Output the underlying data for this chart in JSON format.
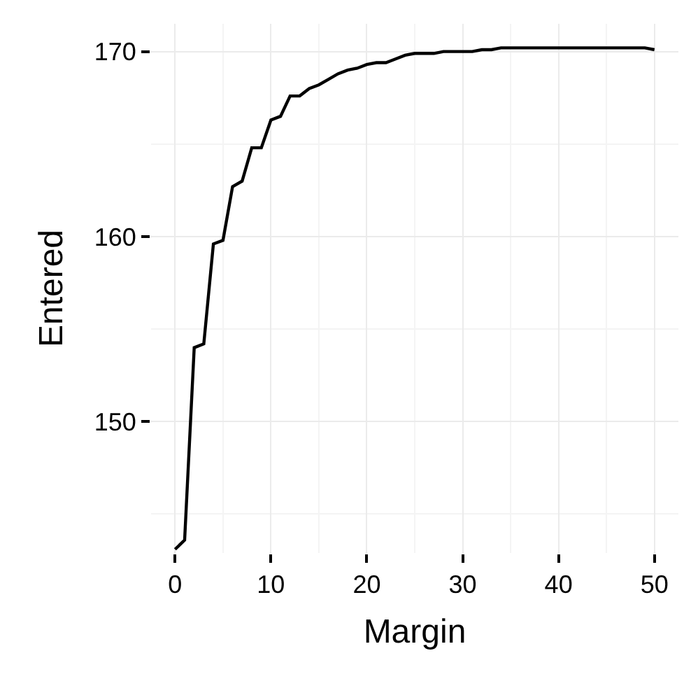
{
  "chart_data": {
    "type": "line",
    "xlabel": "Margin",
    "ylabel": "Entered",
    "x": [
      0,
      1,
      2,
      3,
      4,
      5,
      6,
      7,
      8,
      9,
      10,
      11,
      12,
      13,
      14,
      15,
      16,
      17,
      18,
      19,
      20,
      21,
      22,
      23,
      24,
      25,
      26,
      27,
      28,
      29,
      30,
      31,
      32,
      33,
      34,
      35,
      36,
      37,
      38,
      39,
      40,
      41,
      42,
      43,
      44,
      45,
      46,
      47,
      48,
      49,
      50
    ],
    "series": [
      {
        "color": "#000000",
        "values": [
          143.1,
          143.6,
          154.0,
          154.2,
          159.6,
          159.8,
          162.7,
          163.0,
          164.8,
          164.8,
          166.3,
          166.5,
          167.6,
          167.6,
          168.0,
          168.2,
          168.5,
          168.8,
          169.0,
          169.1,
          169.3,
          169.4,
          169.4,
          169.6,
          169.8,
          169.9,
          169.9,
          169.9,
          170.0,
          170.0,
          170.0,
          170.0,
          170.1,
          170.1,
          170.2,
          170.2,
          170.2,
          170.2,
          170.2,
          170.2,
          170.2,
          170.2,
          170.2,
          170.2,
          170.2,
          170.2,
          170.2,
          170.2,
          170.2,
          170.2,
          170.1
        ]
      }
    ],
    "xlim": [
      -2.5,
      52.5
    ],
    "xticks": [
      0,
      10,
      20,
      30,
      40,
      50
    ],
    "ylim": [
      142.9,
      171.5
    ],
    "yticks": [
      150,
      160,
      170
    ],
    "grid": true,
    "marker": "none",
    "line_style": "solid"
  }
}
